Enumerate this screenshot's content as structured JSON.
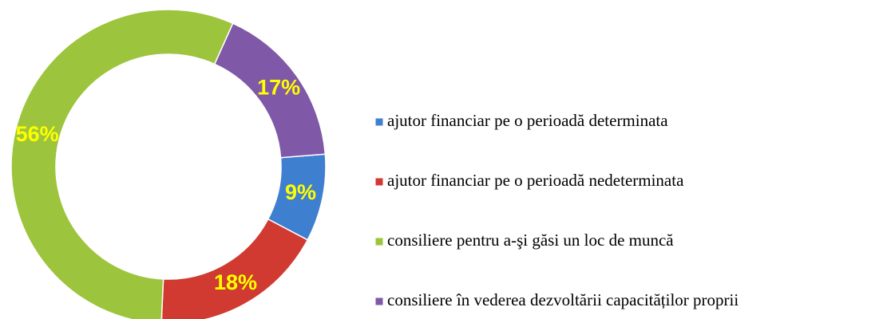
{
  "chart_data": {
    "type": "donut",
    "categories": [
      "ajutor financiar pe o perioadă determinata",
      "ajutor financiar pe o perioadă nedeterminata",
      "consiliere pentru a-şi găsi un loc de muncă",
      "consiliere în vederea dezvoltării capacităților proprii"
    ],
    "values": [
      9,
      18,
      56,
      17
    ],
    "value_labels": [
      "9%",
      "18%",
      "56%",
      "17%"
    ],
    "colors": [
      "#3f7fcf",
      "#d03a30",
      "#9cc43c",
      "#8058a8"
    ],
    "legend": "right"
  }
}
